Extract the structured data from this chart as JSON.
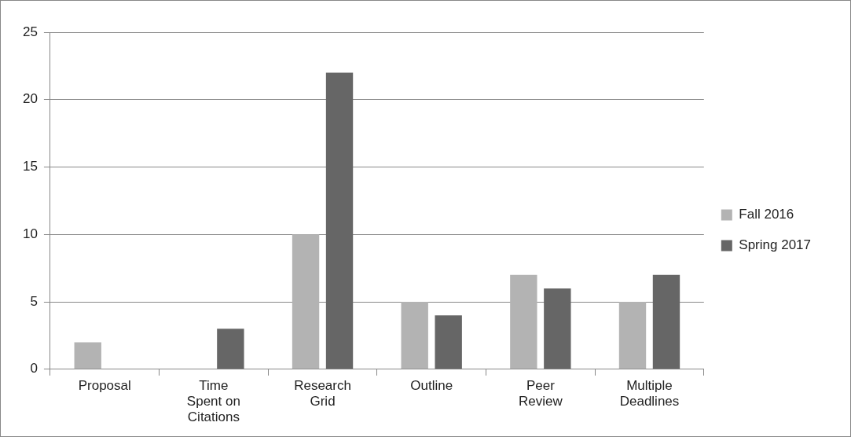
{
  "chart_data": {
    "type": "bar",
    "categories": [
      "Proposal",
      "Time Spent on Citations",
      "Research Grid",
      "Outline",
      "Peer Review",
      "Multiple Deadlines"
    ],
    "series": [
      {
        "name": "Fall 2016",
        "color": "#b3b3b3",
        "values": [
          2,
          0,
          10,
          5,
          7,
          5
        ]
      },
      {
        "name": "Spring 2017",
        "color": "#666666",
        "values": [
          0,
          3,
          22,
          4,
          6,
          7
        ]
      }
    ],
    "ylim": [
      0,
      25
    ],
    "yticks": [
      0,
      5,
      10,
      15,
      20,
      25
    ],
    "grid": "y",
    "legend": "right"
  }
}
